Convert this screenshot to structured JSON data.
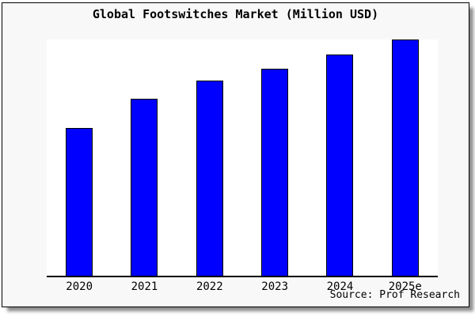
{
  "window": {
    "outer_background": "#ffffff",
    "frame_background": "#f8f8f8",
    "frame_border_color": "#000000",
    "plot_background": "#ffffff",
    "axis_color": "#000000",
    "text_color": "#000000"
  },
  "chart_data": {
    "type": "bar",
    "title": "Global Footswitches Market (Million USD)",
    "categories": [
      "2020",
      "2021",
      "2022",
      "2023",
      "2024",
      "2025e"
    ],
    "values": [
      62.5,
      75,
      82.5,
      87.5,
      93.5,
      100
    ],
    "values_note": "y-axis has no tick labels; values are relative bar heights with the tallest bar (2025e) = 100",
    "xlabel": "",
    "ylabel": "",
    "ylim": [
      0,
      100
    ],
    "grid": false,
    "legend": "none",
    "bar_color": "#0000ff",
    "bar_border_color": "#000000",
    "source": "Source: Prof Research"
  }
}
